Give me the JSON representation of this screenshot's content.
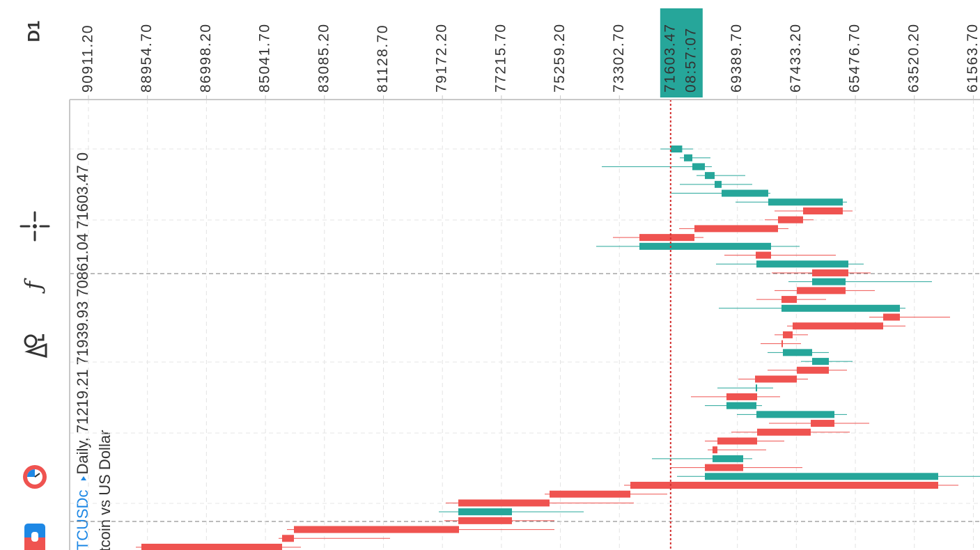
{
  "toolbar": {
    "timeframe": "D1"
  },
  "header": {
    "symbol": "BTCUSDc",
    "period": "Daily,",
    "open": 71219.21,
    "high": 71939.93,
    "low": 70861.04,
    "close": 71603.47,
    "extra": 0,
    "description": "Bitcoin vs US Dollar"
  },
  "chart_data": {
    "type": "candlestick",
    "up_color": "#26a69a",
    "down_color": "#ef5350",
    "xlim": [
      91535,
      61343
    ],
    "xticks": [
      {
        "value": 90911.2,
        "label": "90911.20"
      },
      {
        "value": 88954.7,
        "label": "88954.70"
      },
      {
        "value": 86998.2,
        "label": "86998.20"
      },
      {
        "value": 85041.7,
        "label": "85041.70"
      },
      {
        "value": 83085.2,
        "label": "83085.20"
      },
      {
        "value": 81128.7,
        "label": "81128.70"
      },
      {
        "value": 79172.2,
        "label": "79172.20"
      },
      {
        "value": 77215.7,
        "label": "77215.70"
      },
      {
        "value": 75259.2,
        "label": "75259.20"
      },
      {
        "value": 73302.7,
        "label": "73302.70"
      },
      {
        "value": 69389.7,
        "label": "69389.70"
      },
      {
        "value": 67433.2,
        "label": "67433.20"
      },
      {
        "value": 65476.7,
        "label": "65476.70"
      },
      {
        "value": 63520.2,
        "label": "63520.20"
      },
      {
        "value": 61563.7,
        "label": "61563.70"
      }
    ],
    "grid": true,
    "last_price": 71603.47,
    "last_time": "08:57:07",
    "open": [
      71219.21,
      70883,
      70468,
      70144,
      69913,
      68366,
      65894,
      67211,
      68042,
      70814,
      72639,
      68273,
      68781,
      65709,
      66910,
      65801,
      67418,
      67927,
      64000,
      64554,
      67557,
      67880,
      67927,
      66910,
      66356,
      67418,
      68804,
      68735,
      69752,
      68758,
      66171,
      66956,
      68735,
      70052,
      70214,
      69197,
      70468,
      62729,
      72939,
      75619,
      78645,
      76866,
      78645,
      84097,
      84489,
      89156
    ],
    "high": [
      71939.93,
      71299,
      73886,
      70745,
      71299,
      71623,
      69451,
      68158,
      68481,
      71322,
      73517,
      74071,
      69821,
      70098,
      68250,
      67696,
      68158,
      68758,
      70006,
      65016,
      67742,
      68158,
      68620,
      68389,
      67280,
      68389,
      69359,
      70052,
      70930,
      70468,
      69405,
      68342,
      69590,
      70468,
      70375,
      72223,
      71623,
      71392,
      73147,
      75781,
      79061,
      79292,
      79107,
      84328,
      84605,
      89340
    ],
    "low": [
      70861.04,
      70283,
      70237,
      69128,
      68897,
      68296,
      65755,
      65570,
      66864,
      67696,
      70514,
      67326,
      66125,
      65201,
      64970,
      62937,
      64831,
      66448,
      63815,
      62336,
      63815,
      67049,
      67280,
      66356,
      65570,
      65755,
      67049,
      68204,
      67973,
      68573,
      65755,
      65016,
      65663,
      67834,
      68435,
      68897,
      67234,
      61343,
      62059,
      71715,
      72824,
      74487,
      75457,
      75457,
      80909,
      83866
    ],
    "close": [
      71603.47,
      71161,
      70883,
      70468,
      70144,
      69913,
      68366,
      65894,
      67211,
      68042,
      70814,
      72639,
      68273,
      68758,
      65709,
      66910,
      65801,
      67418,
      67927,
      64000,
      64554,
      67557,
      67880,
      67880,
      66910,
      66356,
      67418,
      68781,
      68735,
      69752,
      68758,
      66171,
      66956,
      68735,
      70052,
      70214,
      69197,
      70468,
      62729,
      72939,
      75619,
      78645,
      76866,
      78622,
      84097,
      84489
    ]
  }
}
